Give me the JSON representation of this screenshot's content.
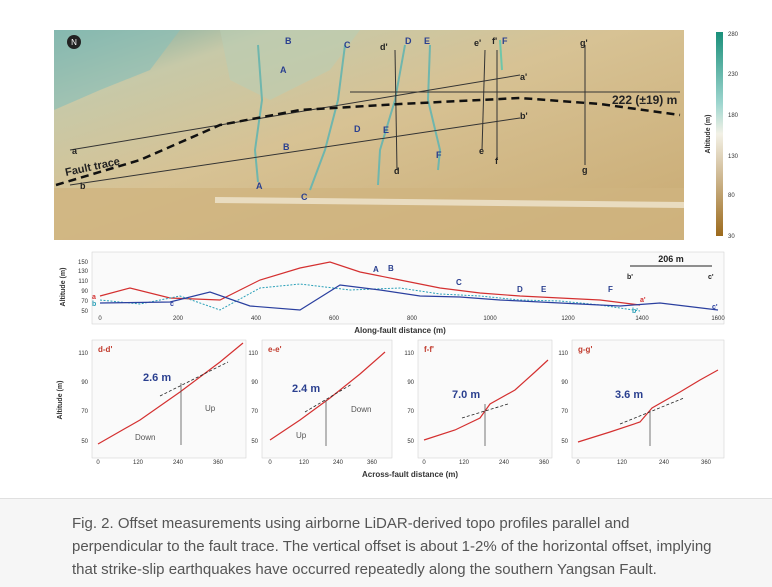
{
  "map": {
    "points_lower": [
      "A",
      "C",
      "D",
      "F",
      "f",
      "e",
      "g",
      "d",
      "B",
      "a",
      "b"
    ],
    "labels": {
      "A_top": "A",
      "B_top": "B",
      "C_top": "C",
      "d_top": "d'",
      "D_top": "D",
      "E_top": "E",
      "e_top": "e'",
      "f_top": "f'",
      "F_top": "F",
      "g_top": "g'",
      "a_prime": "a'",
      "b_prime": "b'",
      "A_mid": "A",
      "B_mid": "B",
      "D_mid": "D",
      "E_mid": "E",
      "A_low": "A",
      "C_low": "C",
      "d_low": "d",
      "e_low": "e",
      "F_low": "F",
      "f_low": "f",
      "g_low": "g",
      "a_left": "a",
      "b_left": "b"
    },
    "fault_trace": "Fault trace",
    "offset": "222 (±19) m",
    "north": "N",
    "colorbar": {
      "title": "Altitude (m)",
      "ticks": [
        "280",
        "230",
        "180",
        "130",
        "80",
        "30"
      ]
    }
  },
  "profile": {
    "ylabel": "Altitude (m)",
    "xlabel": "Along-fault distance (m)",
    "yticks": [
      "150",
      "130",
      "110",
      "90",
      "70",
      "50"
    ],
    "xticks": [
      "0",
      "200",
      "400",
      "600",
      "800",
      "1000",
      "1200",
      "1400",
      "1600"
    ],
    "scale": "206 m",
    "scale_left": "b'",
    "scale_right": "c'",
    "point_labels": {
      "A": "A",
      "B": "B",
      "C": "C",
      "D": "D",
      "E": "E",
      "F": "F"
    },
    "end_labels": {
      "a": "a",
      "b": "b",
      "c": "c",
      "a_prime": "a'",
      "b_prime": "b'",
      "c_prime": "c'"
    }
  },
  "cross": {
    "ylabel": "Altitude (m)",
    "xlabel": "Across-fault distance (m)",
    "yticks": [
      "110",
      "90",
      "70",
      "50"
    ],
    "panels": [
      {
        "title": "d-d'",
        "offset": "2.6 m",
        "up": "Up",
        "down": "Down",
        "xticks": [
          "0",
          "120",
          "240",
          "360"
        ]
      },
      {
        "title": "e-e'",
        "offset": "2.4 m",
        "up": "Up",
        "down": "Down",
        "xticks": [
          "0",
          "120",
          "240",
          "360"
        ]
      },
      {
        "title": "f-f'",
        "offset": "7.0 m",
        "xticks": [
          "0",
          "120",
          "240",
          "360"
        ]
      },
      {
        "title": "g-g'",
        "offset": "3.6 m",
        "xticks": [
          "0",
          "120",
          "240",
          "360"
        ]
      }
    ]
  },
  "caption": "Fig. 2. Offset measurements using airborne LiDAR-derived topo profiles parallel and perpendicular to the fault trace. The vertical offset is about 1-2% of the horizontal offset, implying that strike-slip earthquakes have occurred repeatedly along the southern Yangsan Fault."
}
